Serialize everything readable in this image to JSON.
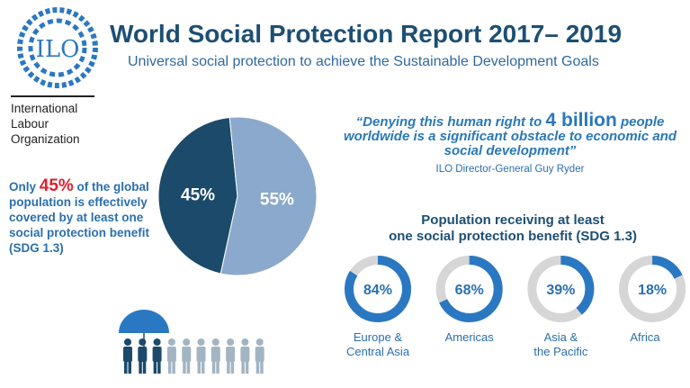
{
  "header": {
    "title": "World Social Protection Report 2017– 2019",
    "subtitle": "Universal social protection to achieve the Sustainable Development Goals",
    "logo_text": "ILO",
    "org_lines": [
      "International",
      "Labour",
      "Organization"
    ]
  },
  "coverage": {
    "prefix": "Only ",
    "highlight": "45%",
    "suffix": " of the global population is effectively covered by at least one social protection benefit (SDG 1.3)"
  },
  "quote": {
    "part1": "“Denying this human right to ",
    "highlight": "4 billion",
    "part2": " people worldwide is a significant obstacle to economic and social development”",
    "author": "ILO Director-General Guy Ryder"
  },
  "colors": {
    "title": "#1d4f73",
    "accent_blue": "#2b78c2",
    "pie_covered": "#1b4a6b",
    "pie_uncovered": "#8aa9cc",
    "donut_track": "#d6d6d6",
    "highlight_red": "#e0202f"
  },
  "icons": [
    "ilo-logo-icon",
    "umbrella-icon",
    "person-icon"
  ],
  "people_graphic": {
    "total": 10,
    "covered": 3
  },
  "chart_data": [
    {
      "type": "pie",
      "title": "",
      "slices": [
        {
          "label": "45%",
          "value": 45,
          "color": "#1b4a6b"
        },
        {
          "label": "55%",
          "value": 55,
          "color": "#8aa9cc"
        }
      ]
    },
    {
      "type": "donut",
      "title": "Population receiving at least one social protection benefit (SDG 1.3)",
      "title_lines": [
        "Population receiving at least",
        "one social protection benefit (SDG 1.3)"
      ],
      "categories": [
        {
          "name": "Europe & Central Asia",
          "lines": [
            "Europe &",
            "Central Asia"
          ],
          "value": 84,
          "label": "84%"
        },
        {
          "name": "Americas",
          "lines": [
            "Americas"
          ],
          "value": 68,
          "label": "68%"
        },
        {
          "name": "Asia & the Pacific",
          "lines": [
            "Asia &",
            "the Pacific"
          ],
          "value": 39,
          "label": "39%"
        },
        {
          "name": "Africa",
          "lines": [
            "Africa"
          ],
          "value": 18,
          "label": "18%"
        }
      ]
    }
  ]
}
